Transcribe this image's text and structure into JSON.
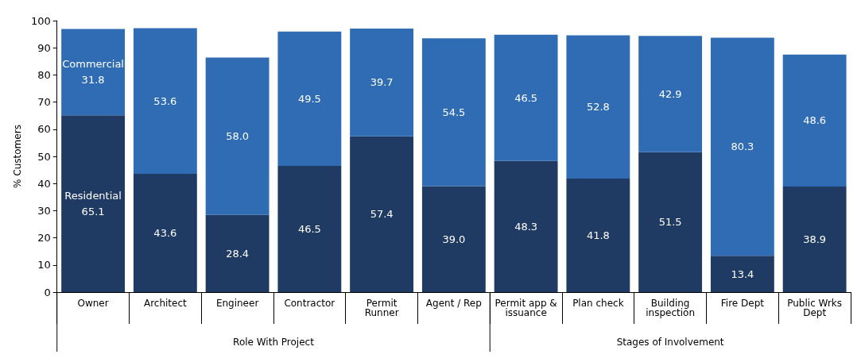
{
  "chart_data": {
    "type": "bar",
    "stacked": true,
    "ylabel": "% Customers",
    "categories": [
      "Owner",
      "Architect",
      "Engineer",
      "Contractor",
      "Permit\nRunner",
      "Agent / Rep",
      "Permit app &\nissuance",
      "Plan check",
      "Building\ninspection",
      "Fire Dept",
      "Public Wrks\nDept"
    ],
    "series": [
      {
        "name": "Residential",
        "color": "#1f3a63",
        "values": [
          65.1,
          43.6,
          28.4,
          46.5,
          57.4,
          39.0,
          48.3,
          41.8,
          51.5,
          13.4,
          38.9
        ],
        "value_labels": [
          "65.1",
          "43.6",
          "28.4",
          "46.5",
          "57.4",
          "39.0",
          "48.3",
          "41.8",
          "51.5",
          "13.4",
          "38.9"
        ]
      },
      {
        "name": "Commercial",
        "color": "#2f6cb3",
        "values": [
          31.8,
          53.6,
          58.0,
          49.5,
          39.7,
          54.5,
          46.5,
          52.8,
          42.9,
          80.3,
          48.6
        ],
        "value_labels": [
          "31.8",
          "53.6",
          "58.0",
          "49.5",
          "39.7",
          "54.5",
          "46.5",
          "52.8",
          "42.9",
          "80.3",
          "48.6"
        ]
      }
    ],
    "ylim": [
      0,
      100
    ],
    "yticks": [
      0,
      10,
      20,
      30,
      40,
      50,
      60,
      70,
      80,
      90,
      100
    ],
    "grid": false,
    "legend": false,
    "annotations": [
      "Role With Project",
      "Stages of Involvement"
    ]
  }
}
